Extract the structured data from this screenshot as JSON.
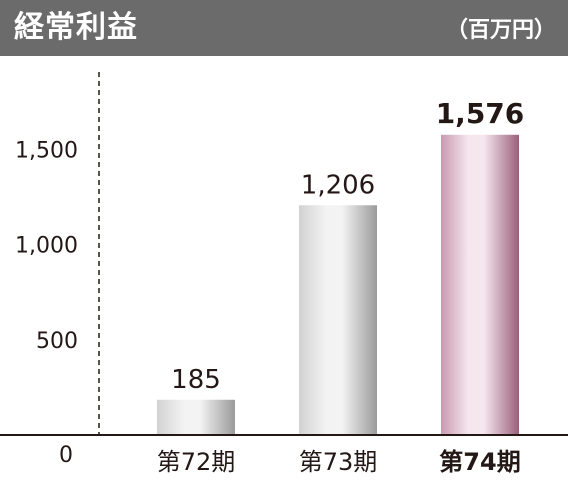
{
  "header": {
    "title": "経常利益",
    "unit": "（百万円）"
  },
  "chart_data": {
    "type": "bar",
    "title": "経常利益",
    "unit": "（百万円）",
    "categories": [
      "第72期",
      "第73期",
      "第74期"
    ],
    "values": [
      185,
      1206,
      1576
    ],
    "value_labels": [
      "185",
      "1,206",
      "1,576"
    ],
    "highlight_index": 2,
    "ylim": [
      0,
      1800
    ],
    "yticks": [
      0,
      500,
      1000,
      1500
    ],
    "ytick_labels": [
      "0",
      "500",
      "1,000",
      "1,500"
    ],
    "grid": false,
    "legend": "none",
    "colors": {
      "bar_light": "#f3f3f3",
      "bar_mid": "#d2d2d2",
      "bar_dark": "#9a9a9a",
      "highlight_light": "#f6e6ee",
      "highlight_mid": "#c79ab0",
      "highlight_dark": "#9a5f7b",
      "axis": "#231815",
      "text": "#231815",
      "header_bg": "#6b6b6b",
      "header_text": "#ffffff"
    }
  }
}
